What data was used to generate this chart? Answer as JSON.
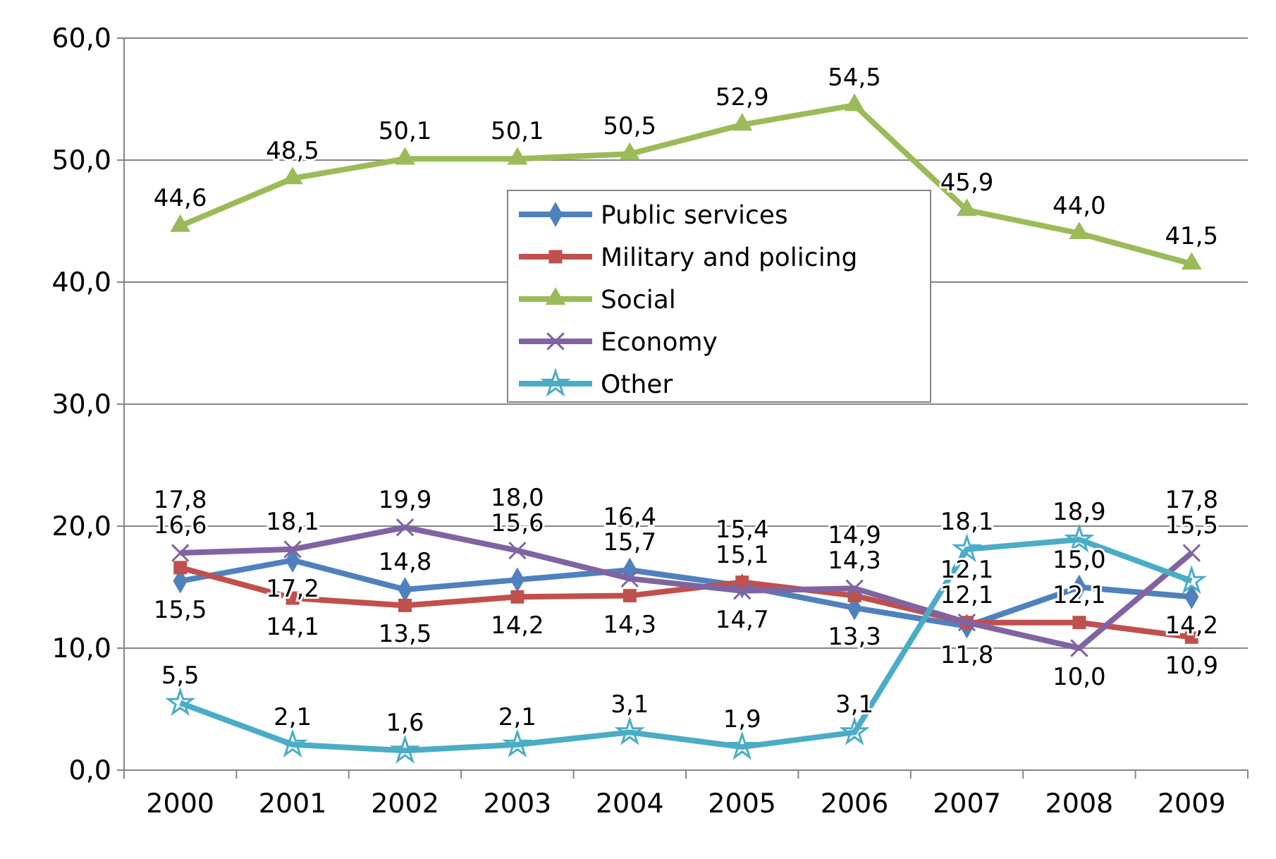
{
  "chart_data": {
    "type": "line",
    "categories": [
      "2000",
      "2001",
      "2002",
      "2003",
      "2004",
      "2005",
      "2006",
      "2007",
      "2008",
      "2009"
    ],
    "series": [
      {
        "name": "Public services",
        "color": "#4f81bd",
        "marker": "diamond",
        "values": [
          15.5,
          17.2,
          14.8,
          15.6,
          16.4,
          15.1,
          13.3,
          11.8,
          15.0,
          14.2
        ],
        "value_labels": [
          "15,5",
          "17,2",
          "14,8",
          "15,6",
          "16,4",
          "15,1",
          "13,3",
          "11,8",
          "15,0",
          "14,2"
        ]
      },
      {
        "name": "Military and policing",
        "color": "#c0504d",
        "marker": "square",
        "values": [
          16.6,
          14.1,
          13.5,
          14.2,
          14.3,
          15.4,
          14.3,
          12.1,
          12.1,
          10.9
        ],
        "value_labels": [
          "16,6",
          "14,1",
          "13,5",
          "14,2",
          "14,3",
          "15,4",
          "14,3",
          "12,1",
          "12,1",
          "10,9"
        ]
      },
      {
        "name": "Social",
        "color": "#9bbb59",
        "marker": "triangle",
        "values": [
          44.6,
          48.5,
          50.1,
          50.1,
          50.5,
          52.9,
          54.5,
          45.9,
          44.0,
          41.5
        ],
        "value_labels": [
          "44,6",
          "48,5",
          "50,1",
          "50,1",
          "50,5",
          "52,9",
          "54,5",
          "45,9",
          "44,0",
          "41,5"
        ]
      },
      {
        "name": "Economy",
        "color": "#8064a2",
        "marker": "cross",
        "values": [
          17.8,
          18.1,
          19.9,
          18.0,
          15.7,
          14.7,
          14.9,
          12.1,
          10.0,
          17.8
        ],
        "value_labels": [
          "17,8",
          "18,1",
          "19,9",
          "18,0",
          "15,7",
          "14,7",
          "14,9",
          "12,1",
          "10,0",
          "17,8"
        ]
      },
      {
        "name": "Other",
        "color": "#4bacc6",
        "marker": "star",
        "values": [
          5.5,
          2.1,
          1.6,
          2.1,
          3.1,
          1.9,
          3.1,
          18.1,
          18.9,
          15.5
        ],
        "value_labels": [
          "5,5",
          "2,1",
          "1,6",
          "2,1",
          "3,1",
          "1,9",
          "3,1",
          "18,1",
          "18,9",
          "15,5"
        ]
      }
    ],
    "ylim": [
      0,
      60
    ],
    "yticks": [
      {
        "value": 0,
        "label": "0,0"
      },
      {
        "value": 10,
        "label": "10,0"
      },
      {
        "value": 20,
        "label": "20,0"
      },
      {
        "value": 30,
        "label": "30,0"
      },
      {
        "value": 40,
        "label": "40,0"
      },
      {
        "value": 50,
        "label": "50,0"
      },
      {
        "value": 60,
        "label": "60,0"
      }
    ],
    "grid": "y",
    "legend": "top",
    "line_style": "solid"
  }
}
